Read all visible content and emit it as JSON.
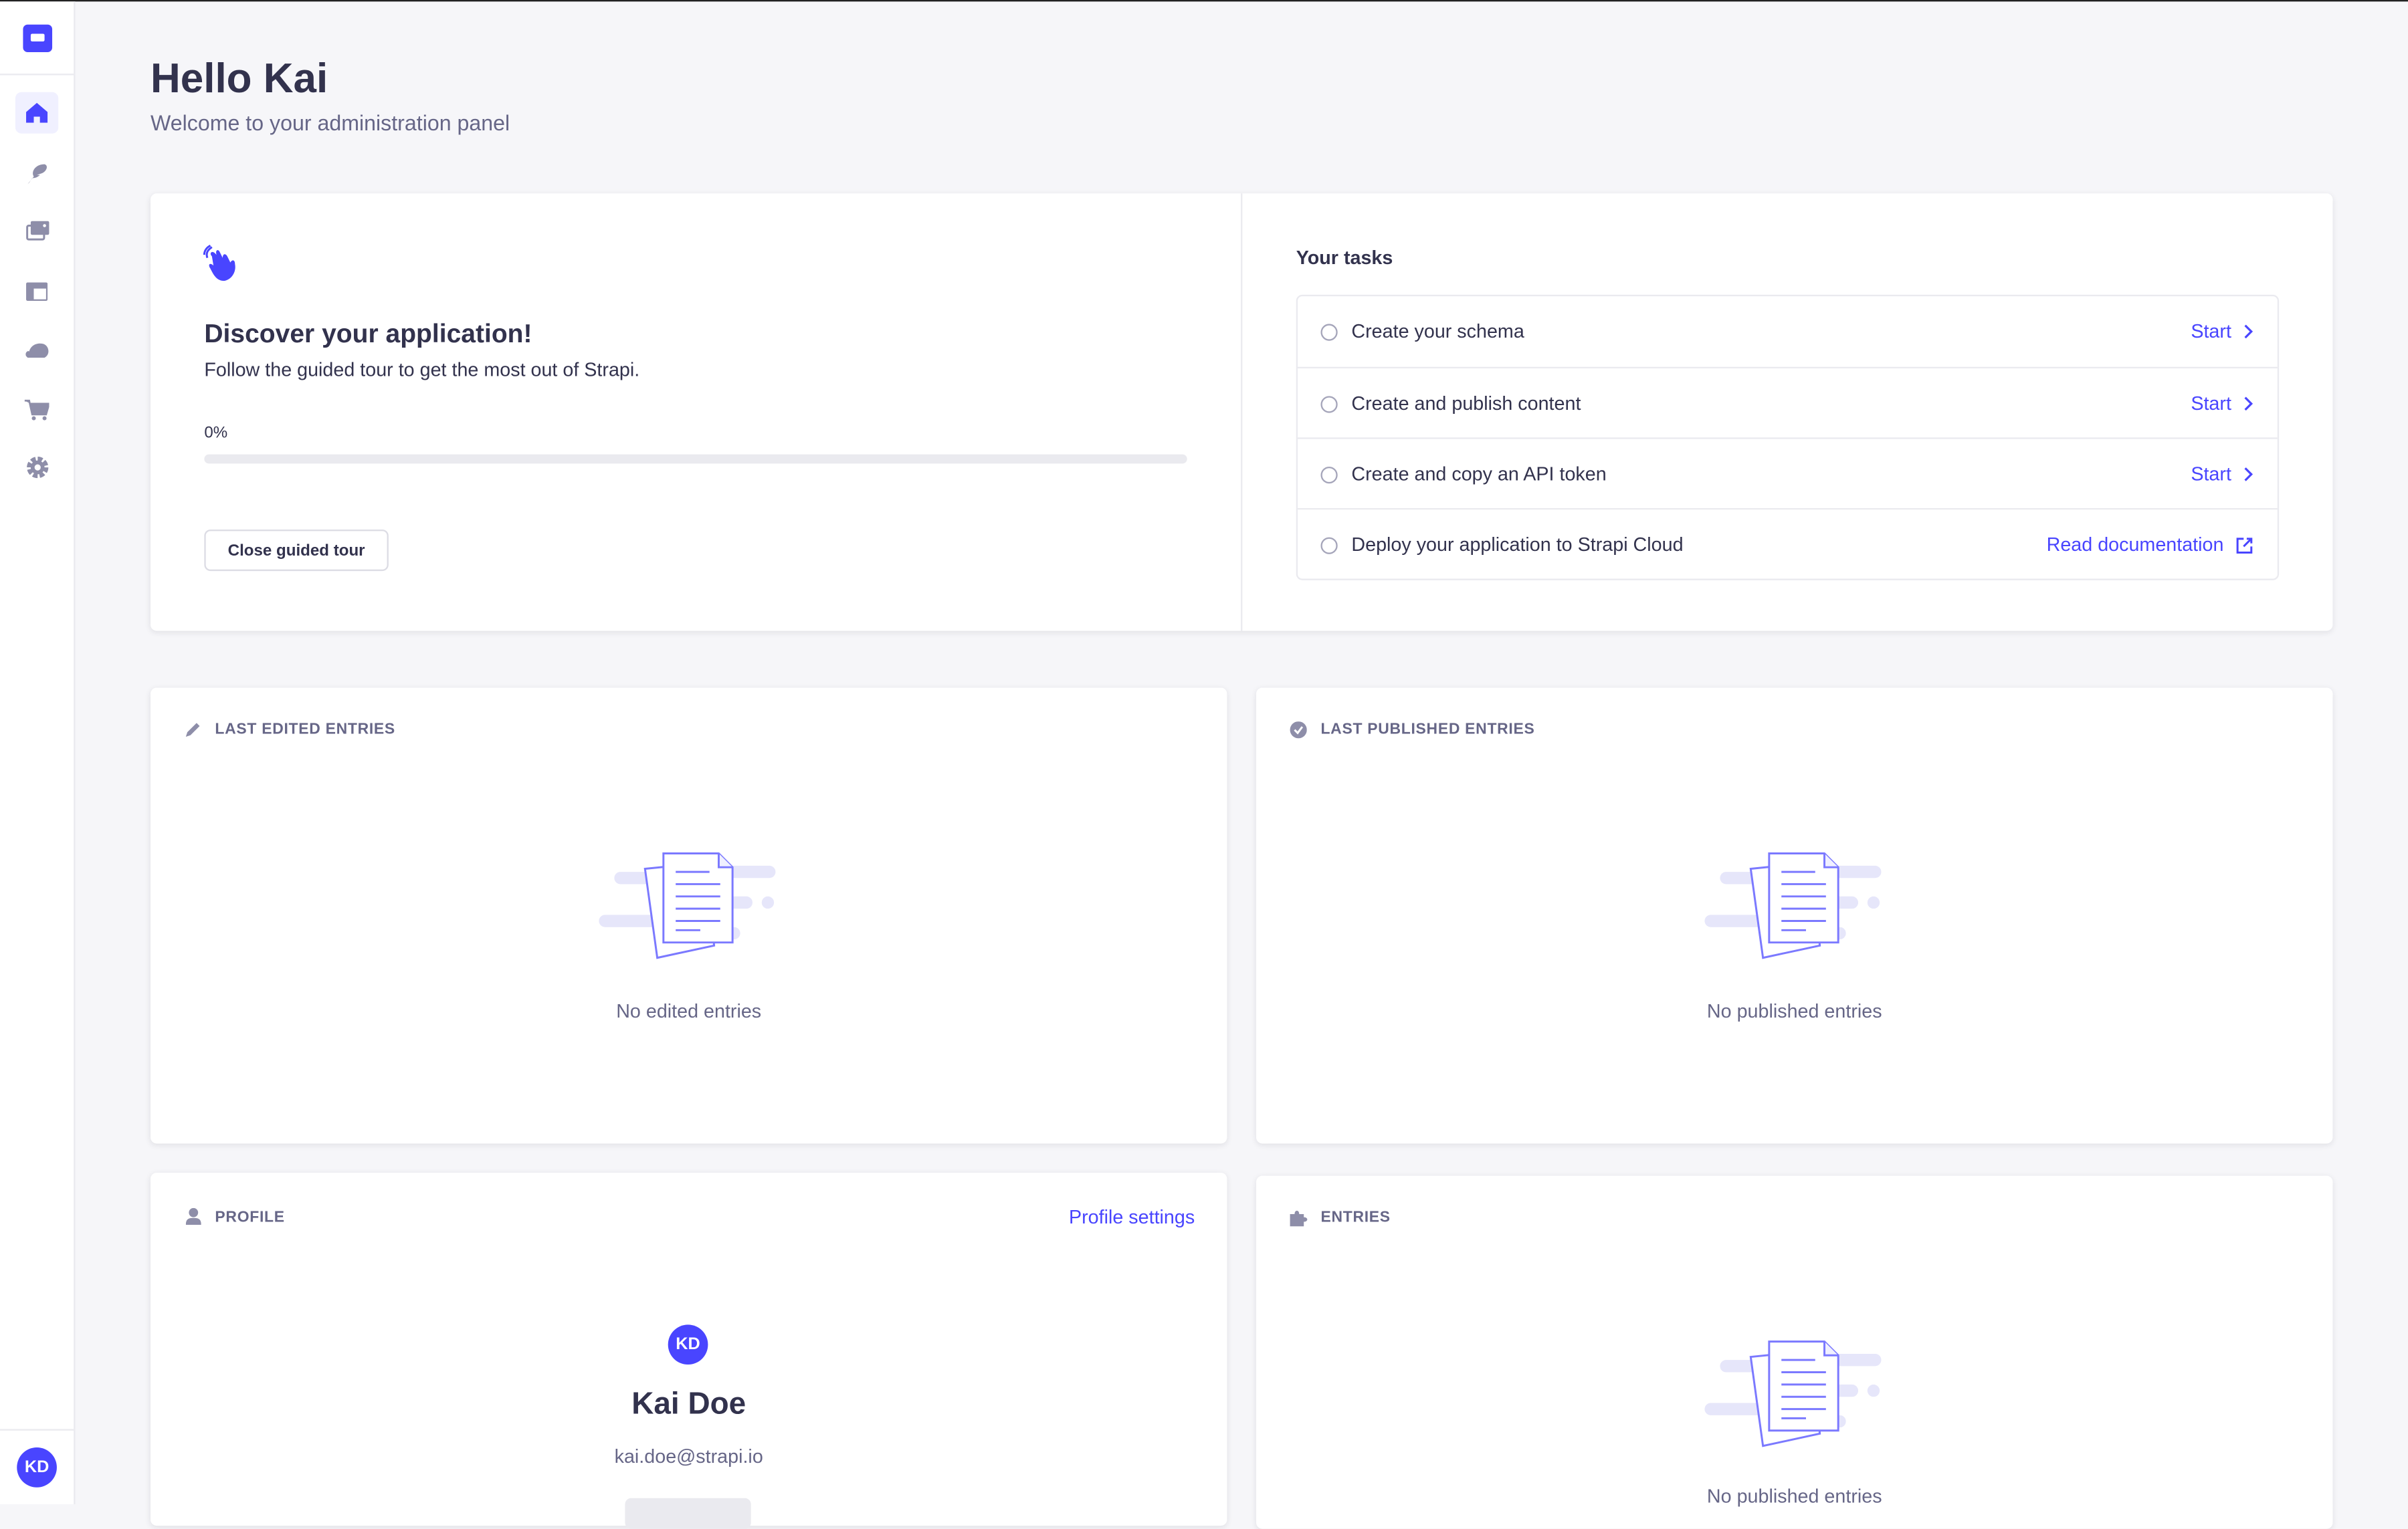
{
  "sidebar": {
    "logo": "strapi-logo",
    "items": [
      {
        "icon": "home-icon",
        "active": true
      },
      {
        "icon": "feather-icon"
      },
      {
        "icon": "images-icon"
      },
      {
        "icon": "layout-icon"
      },
      {
        "icon": "cloud-icon"
      },
      {
        "icon": "cart-icon"
      },
      {
        "icon": "gear-icon"
      }
    ],
    "user_initials": "KD"
  },
  "header": {
    "title": "Hello Kai",
    "subtitle": "Welcome to your administration panel"
  },
  "guided_tour": {
    "title": "Discover your application!",
    "subtitle": "Follow the guided tour to get the most out of Strapi.",
    "progress_label": "0%",
    "progress_percent": 0,
    "close_button": "Close guided tour",
    "tasks_title": "Your tasks",
    "tasks": [
      {
        "label": "Create your schema",
        "action": "Start"
      },
      {
        "label": "Create and publish content",
        "action": "Start"
      },
      {
        "label": "Create and copy an API token",
        "action": "Start"
      },
      {
        "label": "Deploy your application to Strapi Cloud",
        "action": "Read documentation"
      }
    ]
  },
  "last_edited": {
    "title": "Last edited entries",
    "empty": "No edited entries"
  },
  "last_published": {
    "title": "Last published entries",
    "empty": "No published entries"
  },
  "profile": {
    "title": "Profile",
    "settings_link": "Profile settings",
    "initials": "KD",
    "name": "Kai Doe",
    "email": "kai.doe@strapi.io"
  },
  "entries": {
    "title": "Entries",
    "empty": "No published entries"
  },
  "colors": {
    "accent": "#4945ff",
    "background": "#f6f6f9",
    "muted": "#666687"
  }
}
